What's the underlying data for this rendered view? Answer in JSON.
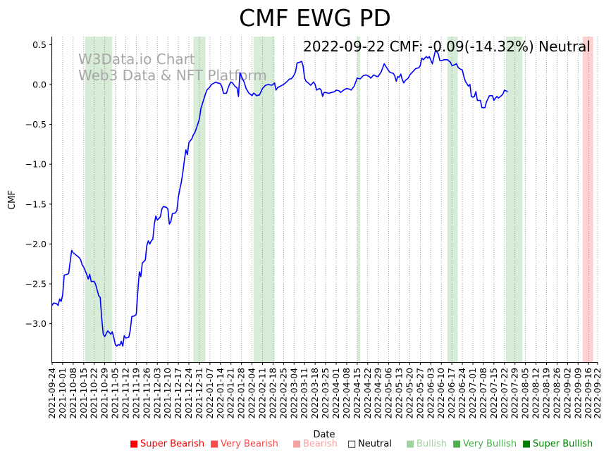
{
  "chart_data": {
    "type": "line",
    "title": "CMF EWG PD",
    "xlabel": "Date",
    "ylabel": "CMF",
    "ylim": [
      -3.48,
      0.6
    ],
    "yticks": [
      0.5,
      0.0,
      -0.5,
      -1.0,
      -1.5,
      -2.0,
      -2.5,
      -3.0
    ],
    "ytick_labels": [
      "0.5",
      "0.0",
      "−0.5",
      "−1.0",
      "−1.5",
      "−2.0",
      "−2.5",
      "−3.0"
    ],
    "x_start": "2021-09-24",
    "x_end": "2022-09-22",
    "xtick_labels": [
      "2021-09-24",
      "2021-10-01",
      "2021-10-08",
      "2021-10-15",
      "2021-10-22",
      "2021-10-29",
      "2021-11-05",
      "2021-11-12",
      "2021-11-19",
      "2021-11-26",
      "2021-12-03",
      "2021-12-10",
      "2021-12-17",
      "2021-12-24",
      "2021-12-31",
      "2022-01-07",
      "2022-01-14",
      "2022-01-21",
      "2022-01-28",
      "2022-02-04",
      "2022-02-11",
      "2022-02-18",
      "2022-02-25",
      "2022-03-04",
      "2022-03-11",
      "2022-03-18",
      "2022-03-25",
      "2022-04-01",
      "2022-04-08",
      "2022-04-15",
      "2022-04-22",
      "2022-04-29",
      "2022-05-06",
      "2022-05-13",
      "2022-05-20",
      "2022-05-27",
      "2022-06-03",
      "2022-06-10",
      "2022-06-17",
      "2022-06-24",
      "2022-07-01",
      "2022-07-08",
      "2022-07-15",
      "2022-07-22",
      "2022-07-29",
      "2022-08-05",
      "2022-08-12",
      "2022-08-19",
      "2022-08-26",
      "2022-09-02",
      "2022-09-09",
      "2022-09-16",
      "2022-09-22"
    ],
    "series": [
      {
        "name": "CMF",
        "color": "#0000ff",
        "points": [
          [
            "2021-09-24",
            -2.77
          ],
          [
            "2021-09-25",
            -2.74
          ],
          [
            "2021-09-27",
            -2.75
          ],
          [
            "2021-09-28",
            -2.77
          ],
          [
            "2021-09-29",
            -2.69
          ],
          [
            "2021-09-30",
            -2.72
          ],
          [
            "2021-10-01",
            -2.64
          ],
          [
            "2021-10-02",
            -2.39
          ],
          [
            "2021-10-04",
            -2.38
          ],
          [
            "2021-10-05",
            -2.37
          ],
          [
            "2021-10-06",
            -2.22
          ],
          [
            "2021-10-07",
            -2.08
          ],
          [
            "2021-10-08",
            -2.11
          ],
          [
            "2021-10-10",
            -2.14
          ],
          [
            "2021-10-12",
            -2.17
          ],
          [
            "2021-10-13",
            -2.2
          ],
          [
            "2021-10-14",
            -2.26
          ],
          [
            "2021-10-15",
            -2.29
          ],
          [
            "2021-10-17",
            -2.38
          ],
          [
            "2021-10-18",
            -2.44
          ],
          [
            "2021-10-19",
            -2.38
          ],
          [
            "2021-10-20",
            -2.47
          ],
          [
            "2021-10-22",
            -2.47
          ],
          [
            "2021-10-23",
            -2.51
          ],
          [
            "2021-10-25",
            -2.65
          ],
          [
            "2021-10-26",
            -2.67
          ],
          [
            "2021-10-27",
            -2.94
          ],
          [
            "2021-10-28",
            -3.13
          ],
          [
            "2021-10-29",
            -3.16
          ],
          [
            "2021-10-31",
            -3.09
          ],
          [
            "2021-11-01",
            -3.11
          ],
          [
            "2021-11-02",
            -3.13
          ],
          [
            "2021-11-03",
            -3.1
          ],
          [
            "2021-11-04",
            -3.17
          ],
          [
            "2021-11-05",
            -3.26
          ],
          [
            "2021-11-06",
            -3.28
          ],
          [
            "2021-11-07",
            -3.26
          ],
          [
            "2021-11-08",
            -3.27
          ],
          [
            "2021-11-09",
            -3.22
          ],
          [
            "2021-11-10",
            -3.28
          ],
          [
            "2021-11-11",
            -3.15
          ],
          [
            "2021-11-12",
            -3.18
          ],
          [
            "2021-11-14",
            -3.17
          ],
          [
            "2021-11-15",
            -3.08
          ],
          [
            "2021-11-16",
            -2.91
          ],
          [
            "2021-11-18",
            -2.9
          ],
          [
            "2021-11-19",
            -2.88
          ],
          [
            "2021-11-20",
            -2.6
          ],
          [
            "2021-11-21",
            -2.35
          ],
          [
            "2021-11-22",
            -2.41
          ],
          [
            "2021-11-23",
            -2.24
          ],
          [
            "2021-11-25",
            -2.2
          ],
          [
            "2021-11-26",
            -2.02
          ],
          [
            "2021-11-27",
            -1.96
          ],
          [
            "2021-11-28",
            -2.0
          ],
          [
            "2021-11-29",
            -1.96
          ],
          [
            "2021-11-30",
            -1.94
          ],
          [
            "2021-12-01",
            -1.75
          ],
          [
            "2021-12-02",
            -1.65
          ],
          [
            "2021-12-03",
            -1.7
          ],
          [
            "2021-12-05",
            -1.66
          ],
          [
            "2021-12-06",
            -1.56
          ],
          [
            "2021-12-07",
            -1.53
          ],
          [
            "2021-12-09",
            -1.54
          ],
          [
            "2021-12-10",
            -1.56
          ],
          [
            "2021-12-11",
            -1.75
          ],
          [
            "2021-12-12",
            -1.72
          ],
          [
            "2021-12-13",
            -1.62
          ],
          [
            "2021-12-15",
            -1.61
          ],
          [
            "2021-12-16",
            -1.58
          ],
          [
            "2021-12-17",
            -1.41
          ],
          [
            "2021-12-18",
            -1.31
          ],
          [
            "2021-12-19",
            -1.22
          ],
          [
            "2021-12-20",
            -1.1
          ],
          [
            "2021-12-21",
            -0.95
          ],
          [
            "2021-12-22",
            -0.82
          ],
          [
            "2021-12-23",
            -0.88
          ],
          [
            "2021-12-24",
            -0.73
          ],
          [
            "2021-12-26",
            -0.68
          ],
          [
            "2021-12-27",
            -0.63
          ],
          [
            "2021-12-28",
            -0.6
          ],
          [
            "2021-12-29",
            -0.55
          ],
          [
            "2021-12-31",
            -0.43
          ],
          [
            "2022-01-01",
            -0.3
          ],
          [
            "2022-01-03",
            -0.18
          ],
          [
            "2022-01-04",
            -0.12
          ],
          [
            "2022-01-05",
            -0.07
          ],
          [
            "2022-01-07",
            -0.03
          ],
          [
            "2022-01-08",
            0.0
          ],
          [
            "2022-01-10",
            0.02
          ],
          [
            "2022-01-11",
            0.03
          ],
          [
            "2022-01-12",
            0.02
          ],
          [
            "2022-01-14",
            0.01
          ],
          [
            "2022-01-15",
            -0.03
          ],
          [
            "2022-01-16",
            -0.11
          ],
          [
            "2022-01-18",
            -0.11
          ],
          [
            "2022-01-19",
            -0.05
          ],
          [
            "2022-01-20",
            0.0
          ],
          [
            "2022-01-21",
            0.03
          ],
          [
            "2022-01-22",
            0.02
          ],
          [
            "2022-01-24",
            -0.03
          ],
          [
            "2022-01-25",
            -0.04
          ],
          [
            "2022-01-26",
            -0.15
          ],
          [
            "2022-01-27",
            0.15
          ],
          [
            "2022-01-28",
            0.1
          ],
          [
            "2022-01-30",
            0.02
          ],
          [
            "2022-01-31",
            -0.05
          ],
          [
            "2022-02-01",
            -0.08
          ],
          [
            "2022-02-02",
            -0.11
          ],
          [
            "2022-02-04",
            -0.14
          ],
          [
            "2022-02-05",
            -0.11
          ],
          [
            "2022-02-06",
            -0.12
          ],
          [
            "2022-02-07",
            -0.14
          ],
          [
            "2022-02-09",
            -0.13
          ],
          [
            "2022-02-11",
            -0.05
          ],
          [
            "2022-02-13",
            -0.01
          ],
          [
            "2022-02-15",
            0.0
          ],
          [
            "2022-02-17",
            -0.01
          ],
          [
            "2022-02-18",
            0.0
          ],
          [
            "2022-02-19",
            0.02
          ],
          [
            "2022-02-20",
            -0.07
          ],
          [
            "2022-02-21",
            -0.04
          ],
          [
            "2022-02-23",
            -0.02
          ],
          [
            "2022-02-25",
            0.0
          ],
          [
            "2022-02-27",
            0.03
          ],
          [
            "2022-03-01",
            0.07
          ],
          [
            "2022-03-02",
            0.07
          ],
          [
            "2022-03-03",
            0.09
          ],
          [
            "2022-03-04",
            0.12
          ],
          [
            "2022-03-05",
            0.16
          ],
          [
            "2022-03-06",
            0.27
          ],
          [
            "2022-03-08",
            0.28
          ],
          [
            "2022-03-09",
            0.29
          ],
          [
            "2022-03-10",
            0.23
          ],
          [
            "2022-03-11",
            0.08
          ],
          [
            "2022-03-12",
            0.04
          ],
          [
            "2022-03-14",
            0.01
          ],
          [
            "2022-03-15",
            -0.01
          ],
          [
            "2022-03-17",
            0.03
          ],
          [
            "2022-03-18",
            0.0
          ],
          [
            "2022-03-19",
            -0.07
          ],
          [
            "2022-03-21",
            -0.05
          ],
          [
            "2022-03-22",
            -0.07
          ],
          [
            "2022-03-23",
            -0.15
          ],
          [
            "2022-03-24",
            -0.1
          ],
          [
            "2022-03-25",
            -0.1
          ],
          [
            "2022-03-27",
            -0.11
          ],
          [
            "2022-03-29",
            -0.1
          ],
          [
            "2022-03-31",
            -0.09
          ],
          [
            "2022-04-01",
            -0.07
          ],
          [
            "2022-04-03",
            -0.08
          ],
          [
            "2022-04-04",
            -0.1
          ],
          [
            "2022-04-06",
            -0.07
          ],
          [
            "2022-04-08",
            -0.05
          ],
          [
            "2022-04-10",
            -0.06
          ],
          [
            "2022-04-11",
            -0.07
          ],
          [
            "2022-04-13",
            -0.02
          ],
          [
            "2022-04-15",
            0.08
          ],
          [
            "2022-04-17",
            0.07
          ],
          [
            "2022-04-19",
            0.11
          ],
          [
            "2022-04-21",
            0.12
          ],
          [
            "2022-04-23",
            0.1
          ],
          [
            "2022-04-24",
            0.08
          ],
          [
            "2022-04-26",
            0.12
          ],
          [
            "2022-04-28",
            0.1
          ],
          [
            "2022-04-29",
            0.1
          ],
          [
            "2022-05-01",
            0.16
          ],
          [
            "2022-05-03",
            0.26
          ],
          [
            "2022-05-05",
            0.2
          ],
          [
            "2022-05-06",
            0.17
          ],
          [
            "2022-05-07",
            0.15
          ],
          [
            "2022-05-09",
            0.14
          ],
          [
            "2022-05-10",
            0.11
          ],
          [
            "2022-05-11",
            0.04
          ],
          [
            "2022-05-12",
            0.1
          ],
          [
            "2022-05-13",
            0.09
          ],
          [
            "2022-05-14",
            0.13
          ],
          [
            "2022-05-15",
            0.06
          ],
          [
            "2022-05-16",
            0.02
          ],
          [
            "2022-05-17",
            0.05
          ],
          [
            "2022-05-19",
            0.08
          ],
          [
            "2022-05-20",
            0.12
          ],
          [
            "2022-05-22",
            0.16
          ],
          [
            "2022-05-24",
            0.2
          ],
          [
            "2022-05-26",
            0.21
          ],
          [
            "2022-05-27",
            0.24
          ],
          [
            "2022-05-28",
            0.33
          ],
          [
            "2022-05-29",
            0.31
          ],
          [
            "2022-05-31",
            0.35
          ],
          [
            "2022-06-01",
            0.33
          ],
          [
            "2022-06-02",
            0.35
          ],
          [
            "2022-06-04",
            0.26
          ],
          [
            "2022-06-05",
            0.34
          ],
          [
            "2022-06-06",
            0.42
          ],
          [
            "2022-06-07",
            0.41
          ],
          [
            "2022-06-08",
            0.38
          ],
          [
            "2022-06-09",
            0.3
          ],
          [
            "2022-06-10",
            0.3
          ],
          [
            "2022-06-12",
            0.31
          ],
          [
            "2022-06-14",
            0.31
          ],
          [
            "2022-06-16",
            0.28
          ],
          [
            "2022-06-17",
            0.24
          ],
          [
            "2022-06-18",
            0.24
          ],
          [
            "2022-06-20",
            0.26
          ],
          [
            "2022-06-21",
            0.22
          ],
          [
            "2022-06-22",
            0.2
          ],
          [
            "2022-06-24",
            0.18
          ],
          [
            "2022-06-25",
            0.1
          ],
          [
            "2022-06-26",
            0.04
          ],
          [
            "2022-06-28",
            -0.02
          ],
          [
            "2022-06-29",
            0.0
          ],
          [
            "2022-06-30",
            -0.15
          ],
          [
            "2022-07-01",
            -0.16
          ],
          [
            "2022-07-02",
            -0.15
          ],
          [
            "2022-07-03",
            -0.09
          ],
          [
            "2022-07-04",
            -0.2
          ],
          [
            "2022-07-06",
            -0.2
          ],
          [
            "2022-07-07",
            -0.29
          ],
          [
            "2022-07-09",
            -0.29
          ],
          [
            "2022-07-10",
            -0.22
          ],
          [
            "2022-07-12",
            -0.14
          ],
          [
            "2022-07-14",
            -0.14
          ],
          [
            "2022-07-15",
            -0.2
          ],
          [
            "2022-07-16",
            -0.17
          ],
          [
            "2022-07-17",
            -0.15
          ],
          [
            "2022-07-18",
            -0.17
          ],
          [
            "2022-07-20",
            -0.14
          ],
          [
            "2022-07-21",
            -0.12
          ],
          [
            "2022-07-22",
            -0.07
          ],
          [
            "2022-07-24",
            -0.09
          ]
        ]
      }
    ],
    "shaded_regions": [
      {
        "start": "2021-10-16",
        "end": "2021-11-03",
        "level": "Very Bullish",
        "color": "#d6ecd6"
      },
      {
        "start": "2021-12-27",
        "end": "2022-01-04",
        "level": "Very Bullish",
        "color": "#d6ecd6"
      },
      {
        "start": "2022-02-05",
        "end": "2022-02-19",
        "level": "Very Bullish",
        "color": "#d6ecd6"
      },
      {
        "start": "2022-04-15",
        "end": "2022-04-17",
        "level": "Very Bullish",
        "color": "#d6ecd6"
      },
      {
        "start": "2022-06-14",
        "end": "2022-06-21",
        "level": "Very Bullish",
        "color": "#d6ecd6"
      },
      {
        "start": "2022-07-23",
        "end": "2022-08-03",
        "level": "Very Bullish",
        "color": "#d6ecd6"
      },
      {
        "start": "2022-09-12",
        "end": "2022-09-19",
        "level": "Super Bearish",
        "color": "#ffd0d0"
      }
    ],
    "annotation": "2022-09-22 CMF: -0.09(-14.32%) Neutral",
    "watermark": [
      "W3Data.io Chart",
      "Web3 Data & NFT Platform"
    ],
    "legend": [
      {
        "marker": "■",
        "label": "Super Bearish",
        "color": "#ff0000"
      },
      {
        "marker": "■",
        "label": "Very Bearish",
        "color": "#f24c4c"
      },
      {
        "marker": "■",
        "label": "Bearish",
        "color": "#f4a3a3"
      },
      {
        "marker": "□",
        "label": "Neutral",
        "color": "#000000"
      },
      {
        "marker": "■",
        "label": "Bullish",
        "color": "#9ed39e"
      },
      {
        "marker": "■",
        "label": "Very Bullish",
        "color": "#4caf4c"
      },
      {
        "marker": "■",
        "label": "Super Bullish",
        "color": "#008000"
      }
    ]
  }
}
